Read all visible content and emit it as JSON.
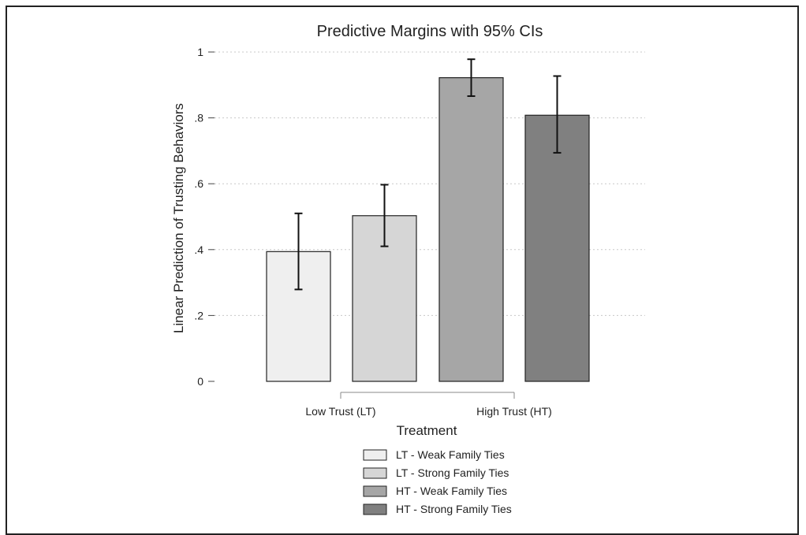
{
  "chart_data": {
    "type": "bar",
    "title": "Predictive Margins with 95% CIs",
    "xlabel": "Treatment",
    "ylabel": "Linear Prediction of Trusting Behaviors",
    "ylim": [
      0,
      1
    ],
    "yticks": [
      0,
      0.2,
      0.4,
      0.6,
      0.8,
      1
    ],
    "ytick_labels": [
      "0",
      ".2",
      ".4",
      ".6",
      ".8",
      "1"
    ],
    "grid": true,
    "groups": [
      "Low Trust (LT)",
      "High Trust (HT)"
    ],
    "legend_position": "bottom",
    "series": [
      {
        "name": "LT - Weak Family Ties",
        "value": 0.394,
        "ci": [
          0.279,
          0.51
        ],
        "color": "#efefef"
      },
      {
        "name": "LT - Strong Family Ties",
        "value": 0.503,
        "ci": [
          0.41,
          0.597
        ],
        "color": "#d6d6d6"
      },
      {
        "name": "HT - Weak Family Ties",
        "value": 0.922,
        "ci": [
          0.866,
          0.978
        ],
        "color": "#a6a6a6"
      },
      {
        "name": "HT - Strong Family Ties",
        "value": 0.808,
        "ci": [
          0.694,
          0.927
        ],
        "color": "#808080"
      }
    ]
  }
}
